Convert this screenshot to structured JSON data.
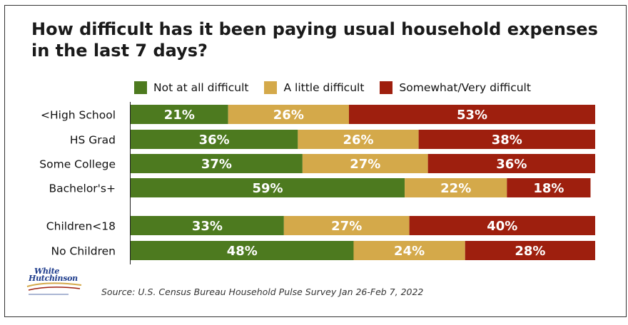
{
  "title": "How difficult has it been paying usual household expenses in the last 7 days?",
  "source": "Source: U.S. Census Bureau Household Pulse Survey Jan 26-Feb 7, 2022",
  "logo": {
    "line1": "White",
    "line2": "Hutchinson"
  },
  "colors": {
    "not_at_all": "#4d7a1f",
    "a_little": "#d4a94a",
    "somewhat_very": "#9e1f0e",
    "bar_text": "#ffffff",
    "label_text": "#111111"
  },
  "chart_data": {
    "type": "bar",
    "orientation": "horizontal",
    "stacked": true,
    "percent_stacked": true,
    "categories": [
      "<High School",
      "HS Grad",
      "Some College",
      "Bachelor's+",
      "Children<18",
      "No Children"
    ],
    "groups": [
      [
        "<High School",
        "HS Grad",
        "Some College",
        "Bachelor's+"
      ],
      [
        "Children<18",
        "No Children"
      ]
    ],
    "series": [
      {
        "name": "Not at all difficult",
        "color": "#4d7a1f",
        "values": [
          21,
          36,
          37,
          59,
          33,
          48
        ]
      },
      {
        "name": "A little difficult",
        "color": "#d4a94a",
        "values": [
          26,
          26,
          27,
          22,
          27,
          24
        ]
      },
      {
        "name": "Somewhat/Very difficult",
        "color": "#9e1f0e",
        "values": [
          53,
          38,
          36,
          18,
          40,
          28
        ]
      }
    ],
    "data_label_suffix": "%",
    "legend": "top",
    "grid": false,
    "xlim": [
      0,
      100
    ]
  }
}
